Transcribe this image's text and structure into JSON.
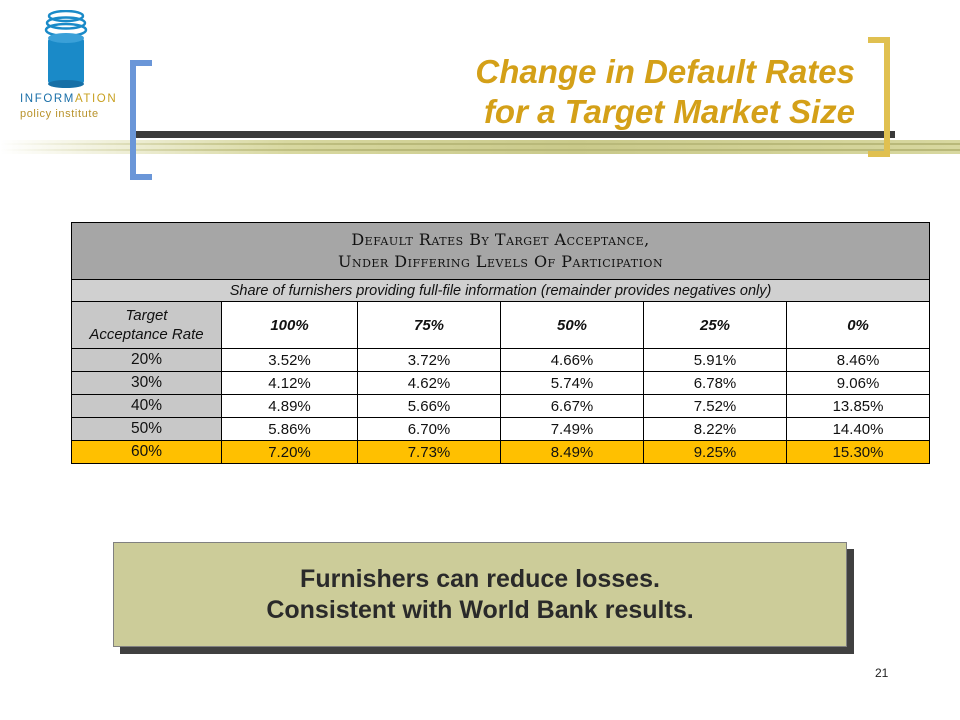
{
  "logo": {
    "text_main": "INFORM",
    "text_accent": "ATION",
    "text_sub": "policy institute",
    "icon": "stacked-cylinder-icon",
    "colors": {
      "blue": "#1a6fa8",
      "gold": "#c8a020"
    }
  },
  "slide": {
    "title_line1": "Change in Default Rates",
    "title_line2": "for a Target Market Size",
    "page_number": "21"
  },
  "table": {
    "title_line1": "Default Rates By Target Acceptance,",
    "title_line2": "Under Differing Levels Of Participation",
    "subtitle": "Share of furnishers providing full-file information (remainder provides negatives only)",
    "row_header_line1": "Target",
    "row_header_line2": "Acceptance Rate",
    "columns": [
      "100%",
      "75%",
      "50%",
      "25%",
      "0%"
    ],
    "rows": [
      {
        "label": "20%",
        "values": [
          "3.52%",
          "3.72%",
          "4.66%",
          "5.91%",
          "8.46%"
        ]
      },
      {
        "label": "30%",
        "values": [
          "4.12%",
          "4.62%",
          "5.74%",
          "6.78%",
          "9.06%"
        ]
      },
      {
        "label": "40%",
        "values": [
          "4.89%",
          "5.66%",
          "6.67%",
          "7.52%",
          "13.85%"
        ]
      },
      {
        "label": "50%",
        "values": [
          "5.86%",
          "6.70%",
          "7.49%",
          "8.22%",
          "14.40%"
        ]
      },
      {
        "label": "60%",
        "values": [
          "7.20%",
          "7.73%",
          "8.49%",
          "9.25%",
          "15.30%"
        ],
        "highlight": true
      }
    ],
    "highlight_color": "#ffc000"
  },
  "callout": {
    "line1": "Furnishers can reduce losses.",
    "line2": "Consistent with World Bank results."
  }
}
